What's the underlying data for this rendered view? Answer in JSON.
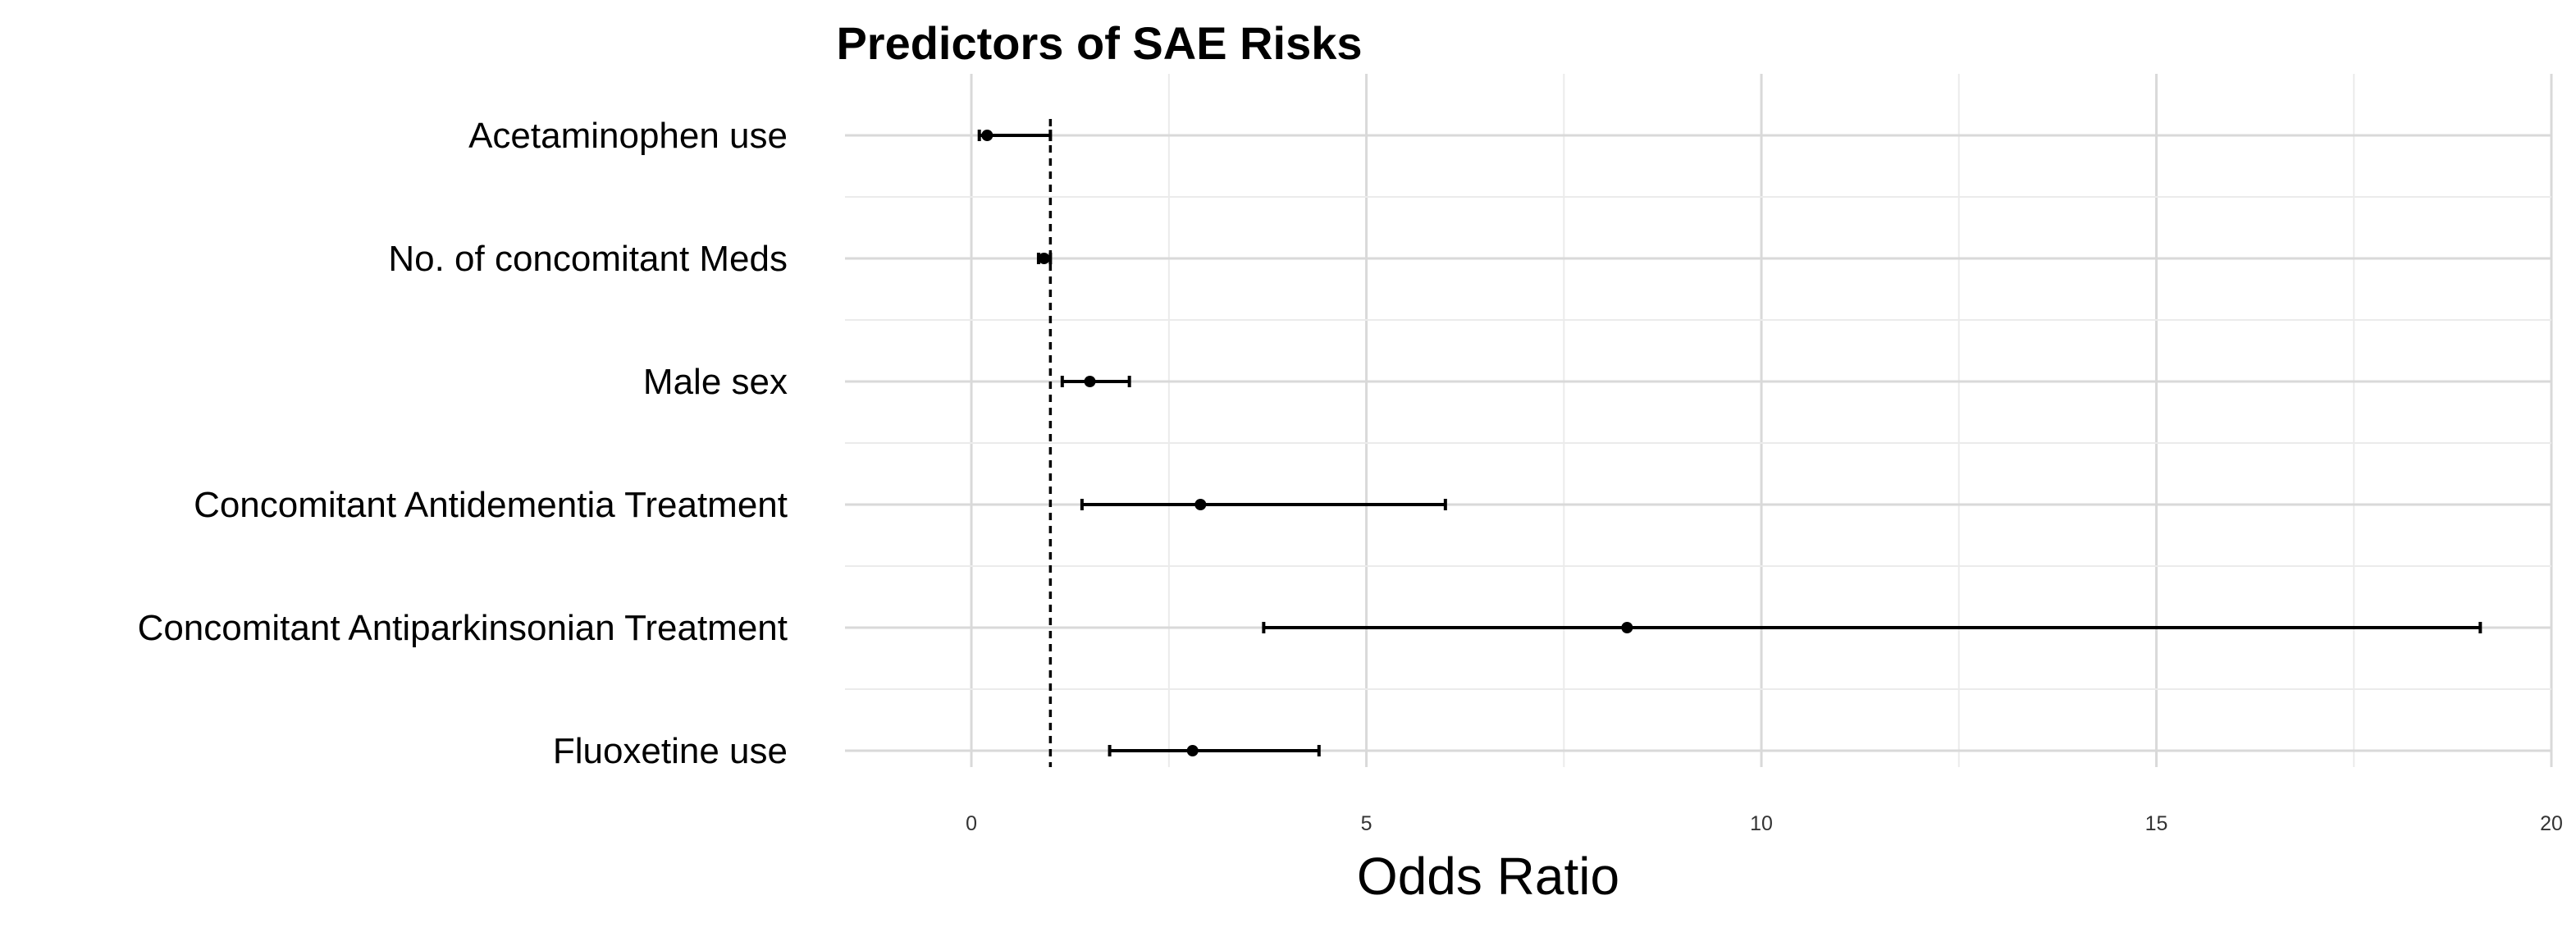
{
  "chart_data": {
    "type": "forest",
    "title": "Predictors of SAE Risks",
    "xlabel": "Odds Ratio",
    "ylabel": "",
    "xlim": [
      -1.6,
      20
    ],
    "x_ticks": [
      0,
      5,
      10,
      15,
      20
    ],
    "reference_line": 1,
    "grid": true,
    "legend": "none",
    "categories": [
      "Acetaminophen use",
      "No. of concomitant Meds",
      "Male sex",
      "Concomitant Antidementia Treatment",
      "Concomitant Antiparkinsonian Treatment",
      "Fluoxetine use"
    ],
    "rows": [
      {
        "label": "Acetaminophen use",
        "estimate": 0.2,
        "lower": 0.1,
        "upper": 1.0
      },
      {
        "label": "No. of concomitant Meds",
        "estimate": 0.92,
        "lower": 0.85,
        "upper": 1.0
      },
      {
        "label": "Male sex",
        "estimate": 1.5,
        "lower": 1.15,
        "upper": 2.0
      },
      {
        "label": "Concomitant Antidementia Treatment",
        "estimate": 2.9,
        "lower": 1.4,
        "upper": 6.0
      },
      {
        "label": "Concomitant Antiparkinsonian Treatment",
        "estimate": 8.3,
        "lower": 3.7,
        "upper": 19.1
      },
      {
        "label": "Fluoxetine use",
        "estimate": 2.8,
        "lower": 1.75,
        "upper": 4.4
      }
    ]
  }
}
